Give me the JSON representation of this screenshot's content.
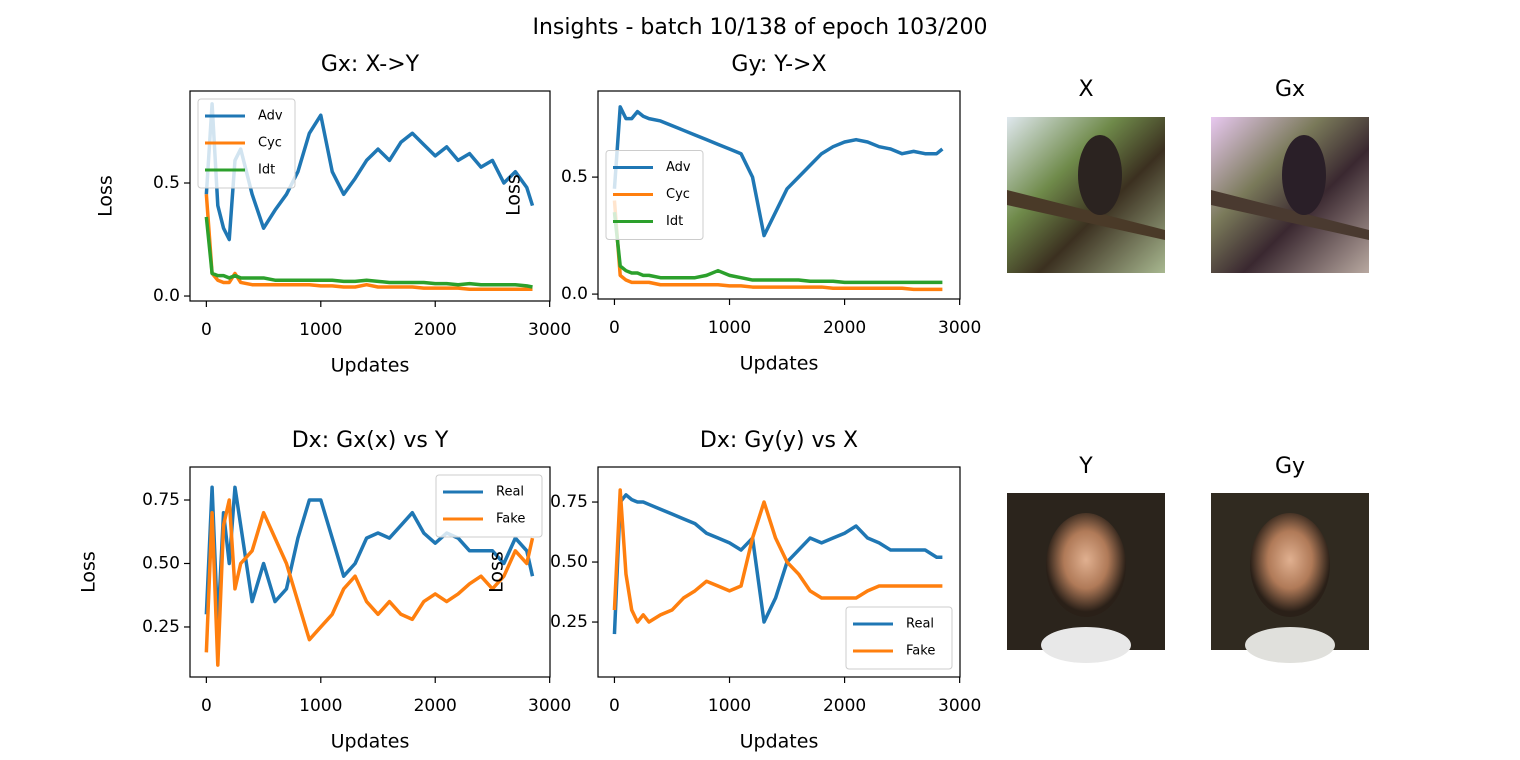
{
  "figure_title": "Insights - batch 10/138 of epoch 103/200",
  "images": [
    {
      "title": "X"
    },
    {
      "title": "Gx"
    },
    {
      "title": "Y"
    },
    {
      "title": "Gy"
    }
  ],
  "chart_data": [
    {
      "type": "line",
      "title": "Gx: X->Y",
      "xlabel": "Updates",
      "ylabel": "Loss",
      "legend": "upper left",
      "x": [
        0,
        50,
        100,
        150,
        200,
        250,
        300,
        400,
        500,
        600,
        700,
        800,
        900,
        1000,
        1100,
        1200,
        1300,
        1400,
        1500,
        1600,
        1700,
        1800,
        1900,
        2000,
        2100,
        2200,
        2300,
        2400,
        2500,
        2600,
        2700,
        2800,
        2850
      ],
      "series": [
        {
          "name": "Adv",
          "color": "#1f77b4",
          "values": [
            0.45,
            0.85,
            0.4,
            0.3,
            0.25,
            0.6,
            0.65,
            0.45,
            0.3,
            0.38,
            0.45,
            0.55,
            0.72,
            0.8,
            0.55,
            0.45,
            0.52,
            0.6,
            0.65,
            0.6,
            0.68,
            0.72,
            0.67,
            0.62,
            0.66,
            0.6,
            0.63,
            0.57,
            0.6,
            0.5,
            0.55,
            0.48,
            0.4
          ]
        },
        {
          "name": "Cyc",
          "color": "#ff7f0e",
          "values": [
            0.45,
            0.1,
            0.07,
            0.06,
            0.06,
            0.1,
            0.06,
            0.05,
            0.05,
            0.05,
            0.05,
            0.05,
            0.05,
            0.045,
            0.045,
            0.04,
            0.04,
            0.05,
            0.04,
            0.04,
            0.04,
            0.04,
            0.035,
            0.035,
            0.035,
            0.035,
            0.03,
            0.03,
            0.03,
            0.03,
            0.03,
            0.03,
            0.03
          ]
        },
        {
          "name": "Idt",
          "color": "#2ca02c",
          "values": [
            0.35,
            0.1,
            0.09,
            0.09,
            0.08,
            0.09,
            0.08,
            0.08,
            0.08,
            0.07,
            0.07,
            0.07,
            0.07,
            0.07,
            0.07,
            0.065,
            0.065,
            0.07,
            0.065,
            0.06,
            0.06,
            0.06,
            0.06,
            0.055,
            0.055,
            0.05,
            0.055,
            0.05,
            0.05,
            0.05,
            0.05,
            0.045,
            0.04
          ]
        }
      ],
      "xlim": [
        -143,
        3003
      ],
      "xticks": [
        0,
        1000,
        2000,
        3000
      ],
      "ylim": [
        -0.022,
        0.907
      ],
      "yticks": [
        {
          "value": 0,
          "label": "0.0"
        },
        0.5
      ]
    },
    {
      "type": "line",
      "title": "Gy: Y->X",
      "xlabel": "Updates",
      "ylabel": "Loss",
      "legend": "center left",
      "x": [
        0,
        50,
        100,
        150,
        200,
        250,
        300,
        400,
        500,
        600,
        700,
        800,
        900,
        1000,
        1100,
        1200,
        1300,
        1400,
        1500,
        1600,
        1700,
        1800,
        1900,
        2000,
        2100,
        2200,
        2300,
        2400,
        2500,
        2600,
        2700,
        2800,
        2850
      ],
      "series": [
        {
          "name": "Adv",
          "color": "#1f77b4",
          "values": [
            0.45,
            0.8,
            0.75,
            0.75,
            0.78,
            0.76,
            0.75,
            0.74,
            0.72,
            0.7,
            0.68,
            0.66,
            0.64,
            0.62,
            0.6,
            0.5,
            0.25,
            0.35,
            0.45,
            0.5,
            0.55,
            0.6,
            0.63,
            0.65,
            0.66,
            0.65,
            0.63,
            0.62,
            0.6,
            0.61,
            0.6,
            0.6,
            0.62
          ]
        },
        {
          "name": "Cyc",
          "color": "#ff7f0e",
          "values": [
            0.4,
            0.08,
            0.06,
            0.05,
            0.05,
            0.05,
            0.05,
            0.04,
            0.04,
            0.04,
            0.04,
            0.04,
            0.04,
            0.035,
            0.035,
            0.03,
            0.03,
            0.03,
            0.03,
            0.03,
            0.03,
            0.03,
            0.025,
            0.025,
            0.025,
            0.025,
            0.025,
            0.025,
            0.025,
            0.02,
            0.02,
            0.02,
            0.02
          ]
        },
        {
          "name": "Idt",
          "color": "#2ca02c",
          "values": [
            0.35,
            0.12,
            0.1,
            0.09,
            0.09,
            0.08,
            0.08,
            0.07,
            0.07,
            0.07,
            0.07,
            0.08,
            0.1,
            0.08,
            0.07,
            0.06,
            0.06,
            0.06,
            0.06,
            0.06,
            0.055,
            0.055,
            0.055,
            0.05,
            0.05,
            0.05,
            0.05,
            0.05,
            0.05,
            0.05,
            0.05,
            0.05,
            0.05
          ]
        }
      ],
      "xlim": [
        -143,
        3003
      ],
      "xticks": [
        0,
        1000,
        2000,
        3000
      ],
      "ylim": [
        -0.021,
        0.868
      ],
      "yticks": [
        {
          "value": 0,
          "label": "0.0"
        },
        0.5
      ]
    },
    {
      "type": "line",
      "title": "Dx: Gx(x) vs Y",
      "xlabel": "Updates",
      "ylabel": "Loss",
      "legend": "upper right",
      "x": [
        0,
        50,
        100,
        150,
        200,
        250,
        300,
        400,
        500,
        600,
        700,
        800,
        900,
        1000,
        1100,
        1200,
        1300,
        1400,
        1500,
        1600,
        1700,
        1800,
        1900,
        2000,
        2100,
        2200,
        2300,
        2400,
        2500,
        2600,
        2700,
        2800,
        2850
      ],
      "series": [
        {
          "name": "Real",
          "color": "#1f77b4",
          "values": [
            0.3,
            0.8,
            0.25,
            0.7,
            0.5,
            0.8,
            0.65,
            0.35,
            0.5,
            0.35,
            0.4,
            0.6,
            0.75,
            0.75,
            0.6,
            0.45,
            0.5,
            0.6,
            0.62,
            0.6,
            0.65,
            0.7,
            0.62,
            0.58,
            0.62,
            0.6,
            0.55,
            0.55,
            0.55,
            0.5,
            0.6,
            0.55,
            0.45
          ]
        },
        {
          "name": "Fake",
          "color": "#ff7f0e",
          "values": [
            0.15,
            0.7,
            0.1,
            0.65,
            0.75,
            0.4,
            0.5,
            0.55,
            0.7,
            0.6,
            0.5,
            0.35,
            0.2,
            0.25,
            0.3,
            0.4,
            0.45,
            0.35,
            0.3,
            0.35,
            0.3,
            0.28,
            0.35,
            0.38,
            0.35,
            0.38,
            0.42,
            0.45,
            0.4,
            0.45,
            0.55,
            0.5,
            0.6
          ]
        }
      ],
      "xlim": [
        -143,
        3003
      ],
      "xticks": [
        0,
        1000,
        2000,
        3000
      ],
      "ylim": [
        0.053,
        0.88
      ],
      "yticks": [
        0.25,
        {
          "value": 0.5,
          "label": "0.50"
        },
        0.75
      ]
    },
    {
      "type": "line",
      "title": "Dx: Gy(y) vs X",
      "xlabel": "Updates",
      "ylabel": "Loss",
      "legend": "lower right",
      "x": [
        0,
        50,
        100,
        150,
        200,
        250,
        300,
        400,
        500,
        600,
        700,
        800,
        900,
        1000,
        1100,
        1200,
        1300,
        1400,
        1500,
        1600,
        1700,
        1800,
        1900,
        2000,
        2100,
        2200,
        2300,
        2400,
        2500,
        2600,
        2700,
        2800,
        2850
      ],
      "series": [
        {
          "name": "Real",
          "color": "#1f77b4",
          "values": [
            0.2,
            0.75,
            0.78,
            0.76,
            0.75,
            0.75,
            0.74,
            0.72,
            0.7,
            0.68,
            0.66,
            0.62,
            0.6,
            0.58,
            0.55,
            0.6,
            0.25,
            0.35,
            0.5,
            0.55,
            0.6,
            0.58,
            0.6,
            0.62,
            0.65,
            0.6,
            0.58,
            0.55,
            0.55,
            0.55,
            0.55,
            0.52,
            0.52
          ]
        },
        {
          "name": "Fake",
          "color": "#ff7f0e",
          "values": [
            0.3,
            0.8,
            0.45,
            0.3,
            0.25,
            0.28,
            0.25,
            0.28,
            0.3,
            0.35,
            0.38,
            0.42,
            0.4,
            0.38,
            0.4,
            0.6,
            0.75,
            0.6,
            0.5,
            0.45,
            0.38,
            0.35,
            0.35,
            0.35,
            0.35,
            0.38,
            0.4,
            0.4,
            0.4,
            0.4,
            0.4,
            0.4,
            0.4
          ]
        }
      ],
      "xlim": [
        -143,
        3003
      ],
      "xticks": [
        0,
        1000,
        2000,
        3000
      ],
      "ylim": [
        0.021,
        0.896
      ],
      "yticks": [
        0.25,
        {
          "value": 0.5,
          "label": "0.50"
        },
        0.75
      ]
    }
  ]
}
